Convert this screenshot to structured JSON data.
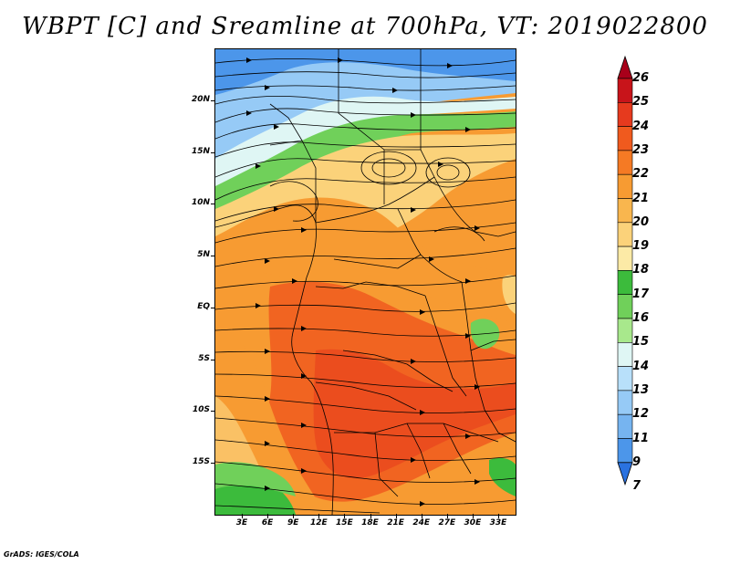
{
  "title": "WBPT [C] and Sreamline at 700hPa, VT: 2019022800",
  "credit": "GrADS: IGES/COLA",
  "map": {
    "latitude_labels": [
      "20N",
      "15N",
      "10N",
      "5N",
      "EQ",
      "5S",
      "10S",
      "15S"
    ],
    "longitude_labels": [
      "3E",
      "6E",
      "9E",
      "12E",
      "15E",
      "18E",
      "21E",
      "24E",
      "27E",
      "30E",
      "33E"
    ]
  },
  "colorbar": {
    "levels": [
      "26",
      "25",
      "24",
      "23",
      "22",
      "21",
      "20",
      "19",
      "18",
      "17",
      "16",
      "15",
      "14",
      "13",
      "12",
      "11",
      "9",
      "7"
    ],
    "colors": [
      "#a8001a",
      "#c8141a",
      "#e63a1e",
      "#f05a1e",
      "#f57a24",
      "#f79b32",
      "#f9b64e",
      "#fbd27a",
      "#fceaa6",
      "#3cbb3c",
      "#70d05a",
      "#a8e88c",
      "#dff6f4",
      "#b8e0fa",
      "#96caf6",
      "#76b4f0",
      "#4c96ea",
      "#2a72e0"
    ]
  },
  "fields": {
    "regions": [
      {
        "name": "sea-blue-north",
        "color": "#4c96ea"
      },
      {
        "name": "band-light-blue",
        "color": "#96caf6"
      },
      {
        "name": "band-pale",
        "color": "#dff6f4"
      },
      {
        "name": "band-green",
        "color": "#70d05a"
      },
      {
        "name": "band-yellow",
        "color": "#fbd27a"
      },
      {
        "name": "core-orange",
        "color": "#f79b32"
      },
      {
        "name": "south-red",
        "color": "#e85a22"
      },
      {
        "name": "southwest-green",
        "color": "#3cbb3c"
      }
    ]
  }
}
